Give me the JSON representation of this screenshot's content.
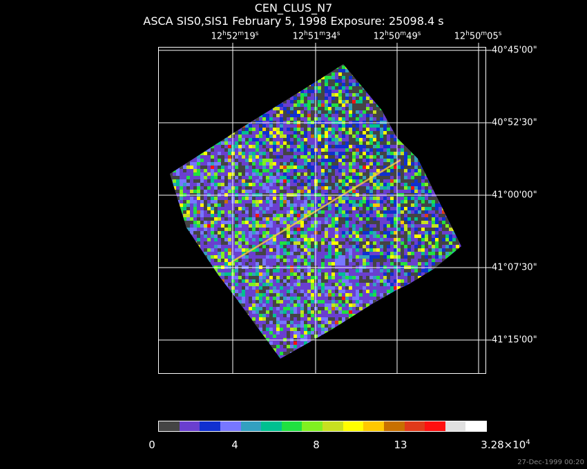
{
  "header": {
    "title": "CEN_CLUS_N7",
    "subtitle": "ASCA SIS0,SIS1 February 5, 1998 Exposure: 25098.4 s"
  },
  "ra_labels": [
    {
      "h": "12",
      "m": "52",
      "s": "19"
    },
    {
      "h": "12",
      "m": "51",
      "s": "34"
    },
    {
      "h": "12",
      "m": "50",
      "s": "49"
    },
    {
      "h": "12",
      "m": "50",
      "s": "05"
    }
  ],
  "dec_labels": [
    "40°45'00\"",
    "40°52'30\"",
    "41°00'00\"",
    "41°07'30\"",
    "41°15'00\""
  ],
  "colorbar": {
    "labels": [
      "0",
      "4",
      "8",
      "13"
    ],
    "max_base": "3.28×10",
    "max_exp": "4",
    "colors": [
      "#444444",
      "#6a3fcf",
      "#1030d0",
      "#7777ff",
      "#33a0c0",
      "#00c090",
      "#20e040",
      "#80f020",
      "#c8e020",
      "#ffff00",
      "#ffc800",
      "#c87000",
      "#e03a1a",
      "#ff1010",
      "#e0e0e0",
      "#ffffff"
    ]
  },
  "footer": {
    "timestamp": "27-Dec-1999 00:20"
  }
}
